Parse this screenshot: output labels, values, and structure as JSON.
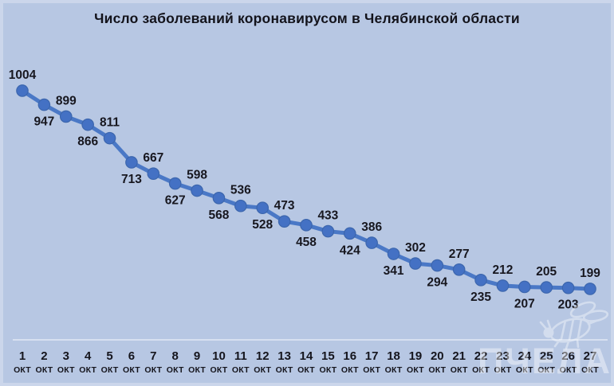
{
  "page": {
    "background_color": "#b7c7e3",
    "frame_highlight": "rgba(255,255,255,0.28)"
  },
  "title": "Число заболеваний коронавирусом в Челябинской области",
  "watermark": {
    "text": "ПЧЕЛА",
    "icon": "bee-icon",
    "color": "rgba(255,255,255,0.42)"
  },
  "chart_data": {
    "type": "line",
    "title": "Число заболеваний коронавирусом в Челябинской области",
    "x_days": [
      1,
      2,
      3,
      4,
      5,
      6,
      7,
      8,
      9,
      10,
      11,
      12,
      13,
      14,
      15,
      16,
      17,
      18,
      19,
      20,
      21,
      22,
      23,
      24,
      25,
      26,
      27
    ],
    "x_month_label": "окт",
    "values": [
      1004,
      947,
      899,
      866,
      811,
      713,
      667,
      627,
      598,
      568,
      536,
      528,
      473,
      458,
      433,
      424,
      386,
      341,
      302,
      294,
      277,
      235,
      212,
      207,
      205,
      203,
      199
    ],
    "xlabel": "",
    "ylabel": "",
    "ylim": [
      0,
      1220
    ],
    "grid": false,
    "legend": "none",
    "data_label_placement": "alternating-above-below",
    "series_color": "#4a78c6",
    "marker_color": "#4471c4",
    "marker_edge_color": "#3c66ad",
    "data_label_color": "#17171f",
    "tick_label_color": "#15151d",
    "axis_line_color": "rgba(255,255,255,0.60)"
  }
}
